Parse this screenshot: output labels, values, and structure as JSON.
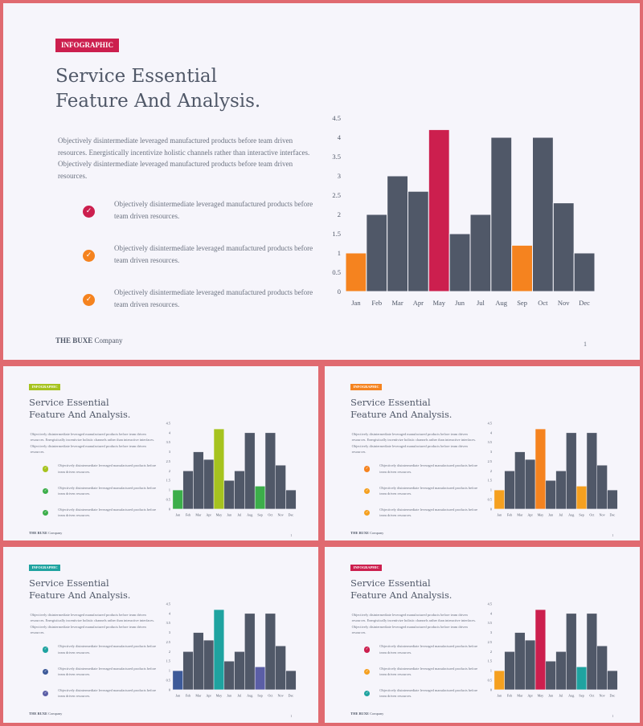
{
  "slides": [
    {
      "id": "main",
      "badge": {
        "label": "INFOGRAPHIC",
        "color": "#cc1f4e"
      },
      "title_line1": "Service Essential",
      "title_line2": "Feature And Analysis.",
      "paragraph": [
        "Objectively disintermediate leveraged manufactured products before team  driven",
        "resources. Energistically incentivize holistic channels rather than interactive interfaces.",
        "Objectively disintermediate leveraged manufactured products before team  driven",
        "resources."
      ],
      "items": [
        {
          "lines": [
            "Objectively disintermediate leveraged manufactured products before",
            "team driven resources."
          ],
          "icon_color": "#cc1f4e"
        },
        {
          "lines": [
            "Objectively disintermediate leveraged manufactured products before",
            "team driven resources."
          ],
          "icon_color": "#f5831f"
        },
        {
          "lines": [
            "Objectively disintermediate leveraged manufactured products before",
            "team driven resources."
          ],
          "icon_color": "#f5831f"
        }
      ],
      "brand_bold": "THE BUXE",
      "brand_rest": " Company",
      "page_number": "1",
      "bar_colors": [
        "#f5831f",
        "#505868",
        "#505868",
        "#505868",
        "#cc1f4e",
        "#505868",
        "#505868",
        "#505868",
        "#f5831f",
        "#505868",
        "#505868",
        "#505868"
      ]
    },
    {
      "id": "s2",
      "badge": {
        "label": "INFOGRAPHIC",
        "color": "#a6c31f"
      },
      "title_line1": "Service Essential",
      "title_line2": "Feature And Analysis.",
      "paragraph": [
        "Objectively disintermediate leveraged manufactured products before team  driven",
        "resources. Energistically incentivize holistic channels rather than interactive interfaces.",
        "Objectively disintermediate leveraged manufactured products before team  driven",
        "resources."
      ],
      "items": [
        {
          "lines": [
            "Objectively disintermediate leveraged manufactured products before",
            "team driven resources."
          ],
          "icon_color": "#a6c31f"
        },
        {
          "lines": [
            "Objectively disintermediate leveraged manufactured products before",
            "team driven resources."
          ],
          "icon_color": "#3cae4a"
        },
        {
          "lines": [
            "Objectively disintermediate leveraged manufactured products before",
            "team driven resources."
          ],
          "icon_color": "#3cae4a"
        }
      ],
      "brand_bold": "THE BUXE",
      "brand_rest": " Company",
      "page_number": "1",
      "bar_colors": [
        "#3cae4a",
        "#505868",
        "#505868",
        "#505868",
        "#a6c31f",
        "#505868",
        "#505868",
        "#505868",
        "#3cae4a",
        "#505868",
        "#505868",
        "#505868"
      ]
    },
    {
      "id": "s3",
      "badge": {
        "label": "INFOGRAPHIC",
        "color": "#f5831f"
      },
      "title_line1": "Service Essential",
      "title_line2": "Feature And Analysis.",
      "paragraph": [
        "Objectively disintermediate leveraged manufactured products before team  driven",
        "resources. Energistically incentivize holistic channels rather than interactive interfaces.",
        "Objectively disintermediate leveraged manufactured products before team  driven",
        "resources."
      ],
      "items": [
        {
          "lines": [
            "Objectively disintermediate leveraged manufactured products before",
            "team driven resources."
          ],
          "icon_color": "#f5831f"
        },
        {
          "lines": [
            "Objectively disintermediate leveraged manufactured products before",
            "team driven resources."
          ],
          "icon_color": "#f5a01f"
        },
        {
          "lines": [
            "Objectively disintermediate leveraged manufactured products before",
            "team driven resources."
          ],
          "icon_color": "#f5a01f"
        }
      ],
      "brand_bold": "THE BUXE",
      "brand_rest": " Company",
      "page_number": "1",
      "bar_colors": [
        "#f5a01f",
        "#505868",
        "#505868",
        "#505868",
        "#f5831f",
        "#505868",
        "#505868",
        "#505868",
        "#f5a01f",
        "#505868",
        "#505868",
        "#505868"
      ]
    },
    {
      "id": "s4",
      "badge": {
        "label": "INFOGRAPHIC",
        "color": "#1fa3a0"
      },
      "title_line1": "Service Essential",
      "title_line2": "Feature And Analysis.",
      "paragraph": [
        "Objectively disintermediate leveraged manufactured products before team  driven",
        "resources. Energistically incentivize holistic channels rather than interactive interfaces.",
        "Objectively disintermediate leveraged manufactured products before team  driven",
        "resources."
      ],
      "items": [
        {
          "lines": [
            "Objectively disintermediate leveraged manufactured products before",
            "team driven resources."
          ],
          "icon_color": "#1fa3a0"
        },
        {
          "lines": [
            "Objectively disintermediate leveraged manufactured products before",
            "team driven resources."
          ],
          "icon_color": "#3d5a99"
        },
        {
          "lines": [
            "Objectively disintermediate leveraged manufactured products before",
            "team driven resources."
          ],
          "icon_color": "#5b5ea6"
        }
      ],
      "brand_bold": "THE BUXE",
      "brand_rest": " Company",
      "page_number": "1",
      "bar_colors": [
        "#3d5a99",
        "#505868",
        "#505868",
        "#505868",
        "#1fa3a0",
        "#505868",
        "#505868",
        "#505868",
        "#5b5ea6",
        "#505868",
        "#505868",
        "#505868"
      ]
    },
    {
      "id": "s5",
      "badge": {
        "label": "INFOGRAPHIC",
        "color": "#cc1f4e"
      },
      "title_line1": "Service Essential",
      "title_line2": "Feature And Analysis.",
      "paragraph": [
        "Objectively disintermediate leveraged manufactured products before team  driven",
        "resources. Energistically incentivize holistic channels rather than interactive interfaces.",
        "Objectively disintermediate leveraged manufactured products before team  driven",
        "resources."
      ],
      "items": [
        {
          "lines": [
            "Objectively disintermediate leveraged manufactured products before",
            "team driven resources."
          ],
          "icon_color": "#cc1f4e"
        },
        {
          "lines": [
            "Objectively disintermediate leveraged manufactured products before",
            "team driven resources."
          ],
          "icon_color": "#f5a01f"
        },
        {
          "lines": [
            "Objectively disintermediate leveraged manufactured products before",
            "team driven resources."
          ],
          "icon_color": "#1fa3a0"
        }
      ],
      "brand_bold": "THE BUXE",
      "brand_rest": " Company",
      "page_number": "1",
      "bar_colors": [
        "#f5a01f",
        "#505868",
        "#505868",
        "#505868",
        "#cc1f4e",
        "#505868",
        "#505868",
        "#505868",
        "#1fa3a0",
        "#505868",
        "#505868",
        "#505868"
      ]
    }
  ],
  "chart_data": {
    "type": "bar",
    "categories": [
      "Jan",
      "Feb",
      "Mar",
      "Apr",
      "May",
      "Jun",
      "Jul",
      "Aug",
      "Sep",
      "Oct",
      "Nov",
      "Dec"
    ],
    "values": [
      1,
      2,
      3,
      2.6,
      4.2,
      1.5,
      2,
      4,
      1.2,
      4,
      2.3,
      1
    ],
    "yticks": [
      "0",
      "0.5",
      "1",
      "1.5",
      "2",
      "2.5",
      "3",
      "3.5",
      "4",
      "4.5"
    ],
    "ylim": [
      0,
      4.5
    ],
    "grid": false,
    "legend": "none"
  }
}
